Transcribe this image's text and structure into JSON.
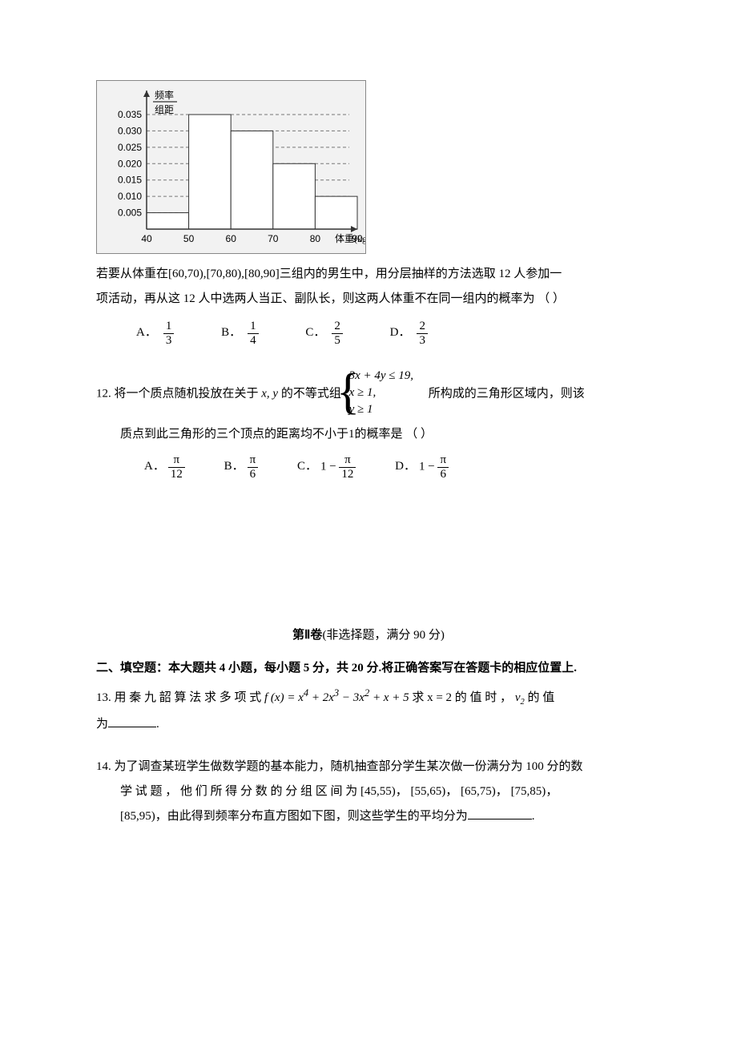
{
  "histogram": {
    "type": "histogram",
    "background_color": "#f2f2f2",
    "axis_color": "#333333",
    "grid_color": "#777777",
    "bar_fill": "#ffffff",
    "bar_stroke": "#333333",
    "y_label_top": "频率",
    "y_label_bottom": "组距",
    "x_label": "体重(kg)",
    "x_ticks": [
      "40",
      "50",
      "60",
      "70",
      "80",
      "90"
    ],
    "y_ticks": [
      "0.005",
      "0.010",
      "0.015",
      "0.020",
      "0.025",
      "0.030",
      "0.035"
    ],
    "y_max": 0.035,
    "bars": [
      {
        "x0": 40,
        "x1": 50,
        "h": 0.005
      },
      {
        "x0": 50,
        "x1": 60,
        "h": 0.035
      },
      {
        "x0": 60,
        "x1": 70,
        "h": 0.03
      },
      {
        "x0": 70,
        "x1": 80,
        "h": 0.02
      },
      {
        "x0": 80,
        "x1": 90,
        "h": 0.01
      }
    ],
    "font_size": 12
  },
  "q11": {
    "text_a": "若要从体重在",
    "intervals": "[60,70),[70,80),[80,90]",
    "text_b": "三组内的男生中，用分层抽样的方法选取 12 人参加一",
    "text_c": "项活动，再从这 12 人中选两人当正、副队长，则这两人体重不在同一组内的概率为  （     ）",
    "options": {
      "A": {
        "num": "1",
        "den": "3"
      },
      "B": {
        "num": "1",
        "den": "4"
      },
      "C": {
        "num": "2",
        "den": "5"
      },
      "D": {
        "num": "2",
        "den": "3"
      }
    }
  },
  "q12": {
    "label": "12.",
    "text_a": "将一个质点随机投放在关于",
    "vars": "x, y",
    "text_b": "的不等式组",
    "system": {
      "l1": "3x + 4y ≤ 19,",
      "l2": "x ≥ 1,",
      "l3": "y ≥ 1"
    },
    "text_c": "所构成的三角形区域内，则该",
    "text_d": "质点到此三角形的三个顶点的距离均不小于",
    "one": "1",
    "text_e": "的概率是 （     ）",
    "options": {
      "A": {
        "pre": "",
        "num": "π",
        "den": "12"
      },
      "B": {
        "pre": "",
        "num": "π",
        "den": "6"
      },
      "C": {
        "pre": "1 − ",
        "num": "π",
        "den": "12"
      },
      "D": {
        "pre": "1 − ",
        "num": "π",
        "den": "6"
      }
    }
  },
  "section2": {
    "title_a": "第Ⅱ卷",
    "title_b": "(非选择题，满分 90 分)",
    "heading": "二、填空题：本大题共 4 小题，每小题 5 分，共 20 分.将正确答案写在答题卡的相应位置上."
  },
  "q13": {
    "label": "13.",
    "text_a": "用 秦 九 韶 算 法 求 多 项 式 ",
    "fx": "f (x) = x",
    "exp4": "4",
    "plus1": " + 2x",
    "exp3": "3",
    "plus2": " − 3x",
    "exp2": "2",
    "plus3": " + x + 5",
    "text_b": "求  x = 2  的 值 时  ，",
    "v2": "v",
    "sub2": "2",
    "text_c": " 的 值",
    "text_d": "为",
    "blank_width": 60,
    "period": "."
  },
  "q14": {
    "label": "14.",
    "text_a": "为了调查某班学生做数学题的基本能力，随机抽查部分学生某次做一份满分为 100 分的数",
    "text_b": "学 试 题 ， 他 们 所 得 分 数 的 分 组 区 间 为",
    "i1": "[45,55)",
    "sep": "，  ",
    "i2": "[55,65)",
    "i3": "[65,75)",
    "i4": "[75,85)",
    "text_c": "，",
    "i5": "[85,95)",
    "text_d": "，由此得到频率分布直方图如下图，则这些学生的平均分为",
    "blank_width": 80,
    "period": "."
  }
}
